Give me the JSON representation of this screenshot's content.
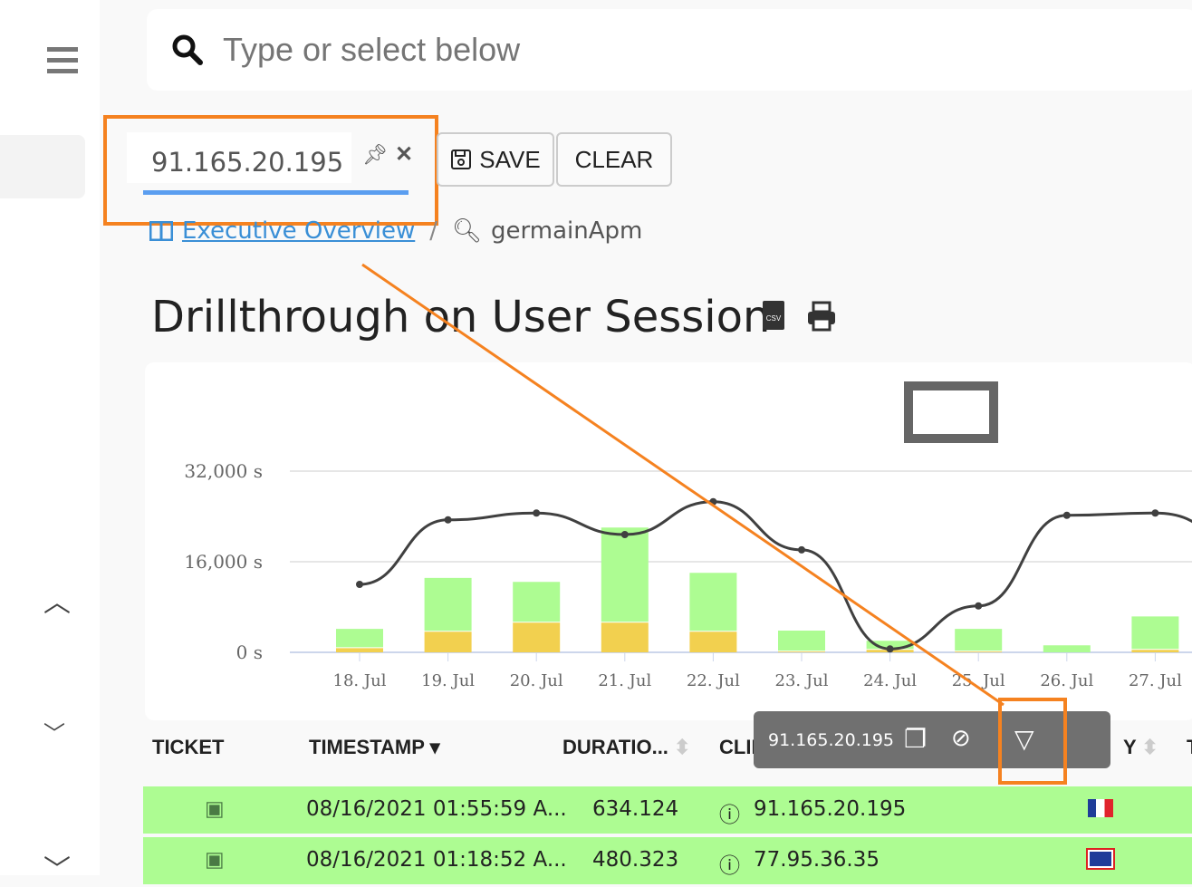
{
  "search": {
    "placeholder": "Type or select below"
  },
  "filter_chip": {
    "value": "91.165.20.195"
  },
  "toolbar": {
    "save_label": "SAVE",
    "clear_label": "CLEAR"
  },
  "breadcrumb": {
    "items": [
      "Executive Overview",
      "germainApm"
    ],
    "separator": "/"
  },
  "page": {
    "title": "Drillthrough on User Session"
  },
  "chart_data": {
    "type": "bar",
    "categories": [
      "18. Jul",
      "19. Jul",
      "20. Jul",
      "21. Jul",
      "22. Jul",
      "23. Jul",
      "24. Jul",
      "25. Jul",
      "26. Jul",
      "27. Jul"
    ],
    "stacked": true,
    "series": [
      {
        "type": "bar",
        "color": "#f2d04f",
        "values": [
          900,
          3800,
          5400,
          5400,
          3800,
          300,
          600,
          300,
          0,
          600
        ]
      },
      {
        "type": "bar",
        "color": "#adfc92",
        "values": [
          3400,
          9500,
          7200,
          16800,
          10400,
          3700,
          1600,
          4000,
          1400,
          5900
        ]
      },
      {
        "type": "line",
        "color": "#404040",
        "values": [
          12000,
          23400,
          24600,
          20800,
          26600,
          18100,
          600,
          8200,
          24200,
          24600
        ]
      }
    ],
    "y_ticks": [
      "0 s",
      "16,000 s",
      "32,000 s"
    ],
    "ylim": [
      0,
      32000
    ],
    "grid": true
  },
  "table": {
    "columns": [
      "TICKET",
      "TIMESTAMP",
      "DURATIO...",
      "CLIENT",
      "Y",
      "T"
    ],
    "rows": [
      {
        "timestamp": "08/16/2021 01:55:59 A...",
        "duration": "634.124",
        "client": "91.165.20.195",
        "country": "France"
      },
      {
        "timestamp": "08/16/2021 01:18:52 A...",
        "duration": "480.323",
        "client": "77.95.36.35",
        "country": "United Kingdom"
      }
    ]
  },
  "tooltip": {
    "value": "91.165.20.195",
    "actions": [
      "copy-icon",
      "hide-icon",
      "filter-icon"
    ]
  },
  "colors": {
    "accent": "#5b9ef0",
    "row_bg": "#adfc92",
    "annotation": "#f58220"
  }
}
